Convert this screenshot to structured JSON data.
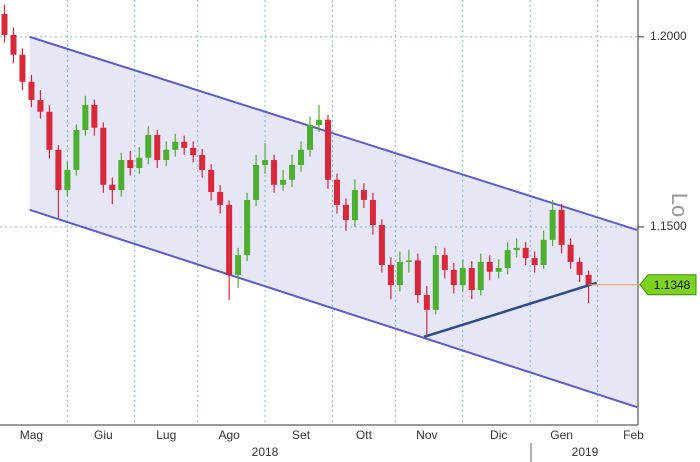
{
  "chart_data": {
    "type": "candlestick",
    "categories": [
      null,
      null,
      null,
      "Mag",
      null,
      null,
      null,
      null,
      null,
      null,
      null,
      "Giu",
      null,
      null,
      null,
      null,
      null,
      null,
      "Lug",
      null,
      null,
      null,
      null,
      null,
      null,
      "Ago",
      null,
      null,
      null,
      null,
      null,
      null,
      null,
      "Set",
      null,
      null,
      null,
      null,
      null,
      null,
      "Ott",
      null,
      null,
      null,
      null,
      null,
      null,
      "Nov",
      null,
      null,
      null,
      null,
      null,
      null,
      null,
      "Dic",
      null,
      null,
      null,
      null,
      null,
      null,
      "Gen",
      null,
      null,
      null,
      null,
      null,
      null,
      null,
      "Feb"
    ],
    "years": [
      "2018",
      "2019"
    ],
    "open": [
      1.206,
      1.2005,
      1.1953,
      1.1882,
      1.1834,
      1.1803,
      1.1703,
      1.1597,
      1.165,
      1.1755,
      1.1821,
      1.1761,
      1.1611,
      1.1597,
      1.1676,
      1.1655,
      1.1682,
      1.1742,
      1.1676,
      1.1703,
      1.1724,
      1.1708,
      1.1689,
      1.165,
      1.1592,
      1.1558,
      1.1374,
      1.1426,
      1.1571,
      1.1663,
      1.1676,
      1.1611,
      1.1624,
      1.1663,
      1.1703,
      1.1768,
      1.1782,
      1.1624,
      1.1558,
      1.1518,
      1.1597,
      1.1571,
      1.1505,
      1.14,
      1.1347,
      1.1408,
      1.1412,
      1.1321,
      1.1282,
      1.1426,
      1.1387,
      1.1347,
      1.1392,
      1.1334,
      1.1408,
      1.1382,
      1.1392,
      1.1439,
      1.1445,
      1.1418,
      1.14,
      1.1466,
      1.1545,
      1.1453,
      1.1408,
      1.1374,
      null,
      null,
      null,
      null,
      null
    ],
    "high": [
      1.2085,
      1.2025,
      1.197,
      1.19,
      1.186,
      1.182,
      1.1715,
      1.1672,
      1.177,
      1.1845,
      1.1835,
      1.1775,
      1.163,
      1.1695,
      1.17,
      1.171,
      1.1765,
      1.1755,
      1.1725,
      1.1745,
      1.174,
      1.1725,
      1.1705,
      1.1665,
      1.161,
      1.157,
      1.1445,
      1.159,
      1.169,
      1.172,
      1.169,
      1.165,
      1.169,
      1.1725,
      1.179,
      1.1821,
      1.1795,
      1.164,
      1.1575,
      1.1625,
      1.1615,
      1.159,
      1.152,
      1.142,
      1.1435,
      1.144,
      1.143,
      1.1345,
      1.145,
      1.1445,
      1.1405,
      1.1415,
      1.141,
      1.143,
      1.1425,
      1.1415,
      1.146,
      1.147,
      1.146,
      1.1435,
      1.149,
      1.1571,
      1.156,
      1.147,
      1.142,
      1.1385,
      null,
      null,
      null,
      null,
      null
    ],
    "low": [
      1.1985,
      1.193,
      1.186,
      1.1815,
      1.1785,
      1.168,
      1.1524,
      1.158,
      1.1635,
      1.174,
      1.174,
      1.159,
      1.156,
      1.158,
      1.1635,
      1.164,
      1.1665,
      1.1655,
      1.166,
      1.1685,
      1.169,
      1.167,
      1.163,
      1.157,
      1.1535,
      1.1308,
      1.134,
      1.141,
      1.1555,
      1.164,
      1.159,
      1.1595,
      1.1605,
      1.1645,
      1.1685,
      1.175,
      1.16,
      1.1535,
      1.149,
      1.15,
      1.155,
      1.148,
      1.138,
      1.131,
      1.133,
      1.138,
      1.13,
      1.1215,
      1.127,
      1.1365,
      1.1325,
      1.133,
      1.131,
      1.132,
      1.136,
      1.1365,
      1.1375,
      1.142,
      1.14,
      1.138,
      1.139,
      1.145,
      1.143,
      1.139,
      1.1355,
      1.13,
      null,
      null,
      null,
      null,
      null
    ],
    "close": [
      1.2005,
      1.1953,
      1.1882,
      1.1834,
      1.1803,
      1.1703,
      1.1597,
      1.165,
      1.1755,
      1.1821,
      1.1761,
      1.1611,
      1.1597,
      1.1676,
      1.1655,
      1.1682,
      1.1742,
      1.1676,
      1.1703,
      1.1724,
      1.1708,
      1.1689,
      1.165,
      1.1592,
      1.1558,
      1.1374,
      1.1426,
      1.1571,
      1.1663,
      1.1676,
      1.1611,
      1.1624,
      1.1663,
      1.1703,
      1.1768,
      1.1782,
      1.1624,
      1.1558,
      1.1518,
      1.1597,
      1.1571,
      1.1505,
      1.14,
      1.1347,
      1.1408,
      1.1412,
      1.1321,
      1.1282,
      1.1426,
      1.1387,
      1.1347,
      1.1392,
      1.1334,
      1.1408,
      1.1382,
      1.1392,
      1.1439,
      1.1445,
      1.1418,
      1.14,
      1.1466,
      1.1545,
      1.1453,
      1.1408,
      1.1374,
      1.1348,
      null,
      null,
      null,
      null,
      null
    ],
    "up_color": "#4caf2f",
    "down_color": "#d8283a",
    "ylim": [
      1.0979,
      1.2097
    ],
    "yticks": [
      {
        "value": 1.2,
        "label": "1.2000"
      },
      {
        "value": 1.15,
        "label": "1.1500"
      }
    ],
    "grid": true,
    "last_price": 1.1348,
    "last_price_color": "#7ed321",
    "annotation": "Lo",
    "channel": {
      "x": [
        2.8,
        70.4
      ],
      "upper": [
        1.2,
        1.1492
      ],
      "lower": [
        1.1545,
        1.1026
      ],
      "color": "#5b5bd0",
      "fill": "#e6e6f7"
    },
    "trendline": {
      "x": [
        46.7,
        65.9
      ],
      "y": [
        1.1211,
        1.1353
      ],
      "color": "#2b4a8a"
    }
  }
}
